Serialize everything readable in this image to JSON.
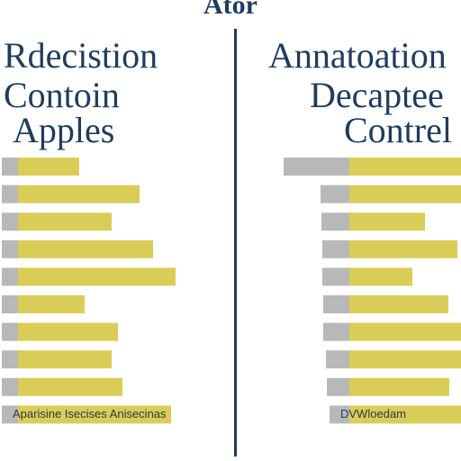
{
  "page": {
    "top_title": "Ator"
  },
  "colors": {
    "gray": "#b8b8b8",
    "yellow": "#d9cd57",
    "text": "#1f3d5c"
  },
  "chart_data": [
    {
      "type": "bar",
      "orientation": "horizontal",
      "stacked": true,
      "title_lines": [
        "Rdecistion",
        "Contoin",
        "Apples"
      ],
      "footer": "Aparisine Isecises Anisecinas",
      "series": [
        {
          "color": "#b8b8b8",
          "values": [
            18,
            18,
            18,
            18,
            18,
            18,
            18,
            18,
            18,
            18
          ]
        },
        {
          "color": "#d9cd57",
          "values": [
            68,
            135,
            104,
            150,
            175,
            74,
            111,
            104,
            116,
            170
          ]
        }
      ]
    },
    {
      "type": "bar",
      "orientation": "horizontal",
      "stacked": true,
      "title_lines": [
        "Annatoation",
        "Decaptee",
        "Contrel"
      ],
      "footer": "DVWloedam",
      "series": [
        {
          "color": "#b8b8b8",
          "values": [
            73,
            32,
            31,
            30,
            30,
            29,
            29,
            26,
            25,
            22
          ]
        },
        {
          "color": "#d9cd57",
          "values": [
            124,
            124,
            84,
            120,
            70,
            110,
            124,
            124,
            111,
            124
          ]
        }
      ]
    }
  ]
}
